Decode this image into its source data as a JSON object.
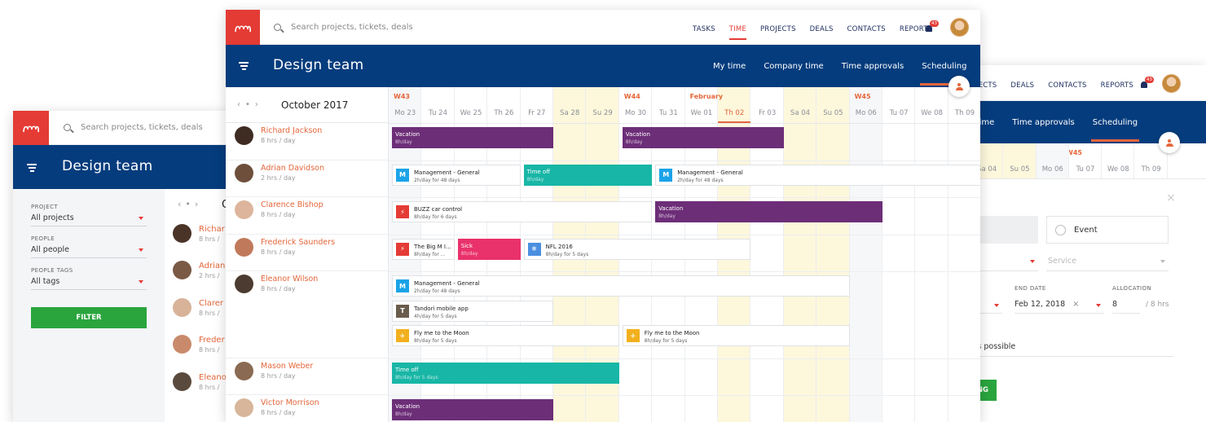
{
  "app": {
    "search_placeholder": "Search projects, tickets, deals",
    "team_title": "Design team",
    "nav": [
      "TASKS",
      "TIME",
      "PROJECTS",
      "DEALS",
      "CONTACTS",
      "REPORTS"
    ],
    "nav_active": "TIME",
    "notification_count": "43",
    "subnav": [
      "My time",
      "Company time",
      "Time approvals",
      "Scheduling"
    ],
    "subnav_active": "Scheduling"
  },
  "left_window": {
    "filters": [
      {
        "label": "PROJECT",
        "value": "All projects"
      },
      {
        "label": "PEOPLE",
        "value": "All people"
      },
      {
        "label": "PEOPLE TAGS",
        "value": "All tags"
      }
    ],
    "filter_button": "FILTER",
    "people": [
      {
        "name": "Richar",
        "hours": "8 hrs /"
      },
      {
        "name": "Adrian",
        "hours": "2 hrs /"
      },
      {
        "name": "Clarer",
        "hours": "8 hrs /"
      },
      {
        "name": "Freder",
        "hours": "8 hrs /"
      },
      {
        "name": "Eleano",
        "hours": "8 hrs /"
      }
    ],
    "month_fragment": "O"
  },
  "main_window": {
    "month": "October 2017",
    "weeks": [
      {
        "label": "W43",
        "col": 0
      },
      {
        "label": "W44",
        "col": 7
      },
      {
        "label": "February",
        "col": 9
      },
      {
        "label": "W45",
        "col": 14
      }
    ],
    "days": [
      {
        "label": "Mo 23",
        "type": "past"
      },
      {
        "label": "Tu 24",
        "type": "normal"
      },
      {
        "label": "We 25",
        "type": "normal"
      },
      {
        "label": "Th 26",
        "type": "normal"
      },
      {
        "label": "Fr 27",
        "type": "normal"
      },
      {
        "label": "Sa 28",
        "type": "weekend"
      },
      {
        "label": "Su 29",
        "type": "weekend"
      },
      {
        "label": "Mo 30",
        "type": "normal"
      },
      {
        "label": "Tu 31",
        "type": "normal"
      },
      {
        "label": "We 01",
        "type": "normal"
      },
      {
        "label": "Th 02",
        "type": "today"
      },
      {
        "label": "Fr 03",
        "type": "normal"
      },
      {
        "label": "Sa 04",
        "type": "weekend"
      },
      {
        "label": "Su 05",
        "type": "weekend"
      },
      {
        "label": "Mo 06",
        "type": "past"
      },
      {
        "label": "Tu 07",
        "type": "normal"
      },
      {
        "label": "We 08",
        "type": "normal"
      },
      {
        "label": "Th 09",
        "type": "normal"
      }
    ],
    "people": [
      {
        "name": "Richard Jackson",
        "hours": "8 hrs / day"
      },
      {
        "name": "Adrian Davidson",
        "hours": "2 hrs / day"
      },
      {
        "name": "Clarence Bishop",
        "hours": "8 hrs / day"
      },
      {
        "name": "Frederick Saunders",
        "hours": "8 hrs / day"
      },
      {
        "name": "Eleanor Wilson",
        "hours": "8 hrs / day"
      },
      {
        "name": "Mason Weber",
        "hours": "8 hrs / day"
      },
      {
        "name": "Victor Morrison",
        "hours": "8 hrs / day"
      }
    ],
    "bookings": [
      {
        "person": 0,
        "lane": 0,
        "start": 0,
        "end": 5,
        "style": "purple",
        "title": "Vacation",
        "sub": "8h/day"
      },
      {
        "person": 0,
        "lane": 0,
        "start": 7,
        "end": 12,
        "style": "purple",
        "title": "Vacation",
        "sub": "8h/day"
      },
      {
        "person": 1,
        "lane": 0,
        "start": 0,
        "end": 4,
        "style": "white",
        "icon": "M",
        "icon_color": "#1aa3e8",
        "title": "Management - General",
        "sub": "2h/day for 48 days"
      },
      {
        "person": 1,
        "lane": 0,
        "start": 4,
        "end": 8,
        "style": "teal",
        "title": "Time off",
        "sub": "8h/day"
      },
      {
        "person": 1,
        "lane": 0,
        "start": 8,
        "end": 18,
        "style": "white",
        "icon": "M",
        "icon_color": "#1aa3e8",
        "title": "Management - General",
        "sub": "2h/day for 48 days"
      },
      {
        "person": 2,
        "lane": 0,
        "start": 0,
        "end": 8,
        "style": "white",
        "icon": "⚡",
        "icon_color": "#e43b35",
        "title": "BUZZ car control",
        "sub": "8h/day for 6 days"
      },
      {
        "person": 2,
        "lane": 0,
        "start": 8,
        "end": 15,
        "style": "purple",
        "title": "Vacation",
        "sub": "8h/day"
      },
      {
        "person": 3,
        "lane": 0,
        "start": 0,
        "end": 2,
        "style": "white",
        "icon": "⚡",
        "icon_color": "#e43b35",
        "title": "The Big M I...",
        "sub": "8h/day for ..."
      },
      {
        "person": 3,
        "lane": 0,
        "start": 2,
        "end": 4,
        "style": "pink",
        "title": "Sick",
        "sub": "8h/day"
      },
      {
        "person": 3,
        "lane": 0,
        "start": 4,
        "end": 11,
        "style": "white",
        "icon": "❄",
        "icon_color": "#4a8fe0",
        "title": "NFL 2016",
        "sub": "8h/day for 5 days"
      },
      {
        "person": 4,
        "lane": 0,
        "start": 0,
        "end": 14,
        "style": "white",
        "icon": "M",
        "icon_color": "#1aa3e8",
        "title": "Management - General",
        "sub": "2h/day for 48 days"
      },
      {
        "person": 4,
        "lane": 1,
        "start": 0,
        "end": 5,
        "style": "white",
        "icon": "T",
        "icon_color": "#6a5c4c",
        "title": "Tandori mobile app",
        "sub": "4h/day for 5 days"
      },
      {
        "person": 4,
        "lane": 2,
        "start": 0,
        "end": 7,
        "style": "white",
        "icon": "✈",
        "icon_color": "#f2b01e",
        "title": "Fly me to the Moon",
        "sub": "8h/day for 5 days"
      },
      {
        "person": 4,
        "lane": 2,
        "start": 7,
        "end": 14,
        "style": "white",
        "icon": "✈",
        "icon_color": "#f2b01e",
        "title": "Fly me to the Moon",
        "sub": "8h/day for 5 days"
      },
      {
        "person": 5,
        "lane": 0,
        "start": 0,
        "end": 7,
        "style": "teal",
        "title": "Time off",
        "sub": "8h/day for 5 days"
      },
      {
        "person": 6,
        "lane": 0,
        "start": 0,
        "end": 5,
        "style": "purple",
        "title": "Vacation",
        "sub": "8h/day"
      }
    ]
  },
  "right_window": {
    "nav": [
      "JECTS",
      "DEALS",
      "CONTACTS",
      "REPORTS"
    ],
    "subnav": [
      "mpany time",
      "Time approvals",
      "Scheduling"
    ],
    "days": [
      {
        "label": "Sa 04",
        "type": "weekend"
      },
      {
        "label": "Su 05",
        "type": "weekend"
      },
      {
        "label": "Mo 06",
        "type": "past"
      },
      {
        "label": "Tu 07",
        "type": "normal"
      },
      {
        "label": "We 08",
        "type": "normal"
      },
      {
        "label": "Th 09",
        "type": "normal"
      }
    ],
    "week": "W45",
    "event_label": "Event",
    "service_placeholder": "Service",
    "end_date_label": "END DATE",
    "end_date_value": "Feb 12, 2018",
    "allocation_label": "ALLOCATION",
    "allocation_value": "8",
    "allocation_unit": "/ 8 hrs",
    "asap_text": "s soon as possible",
    "button_fragment": "NG",
    "close_symbol": "×"
  }
}
